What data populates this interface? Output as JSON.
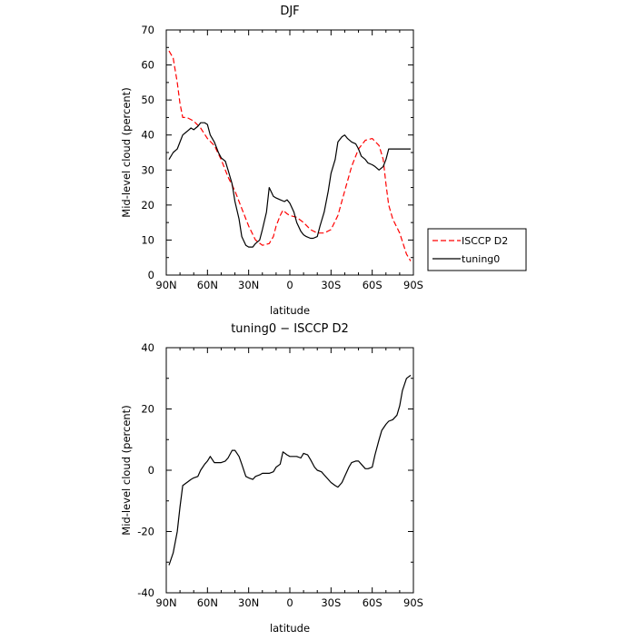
{
  "chart_data": [
    {
      "type": "line",
      "title": "DJF",
      "xlabel": "latitude",
      "ylabel": "Mid-level cloud (percent)",
      "xticks": [
        "90N",
        "60N",
        "30N",
        "0",
        "30S",
        "60S",
        "90S"
      ],
      "xtick_values": [
        90,
        60,
        30,
        0,
        -30,
        -60,
        -90
      ],
      "xlim": [
        90,
        -90
      ],
      "ylim": [
        0,
        70
      ],
      "yticks": [
        0,
        10,
        20,
        30,
        40,
        50,
        60,
        70
      ],
      "grid": false,
      "legend_position": "right",
      "series": [
        {
          "name": "ISCCP D2",
          "color": "#ff0000",
          "style": "dashed",
          "x": [
            88,
            85,
            82,
            80,
            78,
            75,
            70,
            65,
            60,
            55,
            50,
            45,
            40,
            35,
            30,
            25,
            20,
            15,
            12,
            10,
            7,
            5,
            2,
            0,
            -5,
            -10,
            -15,
            -20,
            -25,
            -30,
            -35,
            -40,
            -45,
            -50,
            -55,
            -60,
            -65,
            -68,
            -70,
            -72,
            -75,
            -80,
            -85,
            -88
          ],
          "y": [
            64,
            62,
            55,
            49,
            45,
            45,
            44,
            42,
            39,
            37,
            33,
            28,
            24,
            19,
            14,
            10,
            8.5,
            9,
            11,
            14,
            17,
            18.5,
            17.5,
            17,
            16.5,
            15,
            13,
            12,
            12,
            13,
            17,
            24,
            31,
            36,
            38.5,
            39,
            37,
            33,
            26,
            20,
            16,
            12,
            6,
            4
          ]
        },
        {
          "name": "tuning0",
          "color": "#000000",
          "style": "solid",
          "x": [
            88,
            85,
            82,
            80,
            78,
            75,
            72,
            70,
            67,
            65,
            62,
            60,
            58,
            55,
            52,
            50,
            47,
            45,
            42,
            40,
            37,
            35,
            32,
            30,
            27,
            25,
            22,
            20,
            17,
            15,
            12,
            10,
            7,
            4,
            2,
            0,
            -3,
            -5,
            -8,
            -10,
            -12,
            -15,
            -17,
            -20,
            -22,
            -25,
            -28,
            -30,
            -33,
            -35,
            -38,
            -40,
            -42,
            -45,
            -48,
            -50,
            -52,
            -55,
            -57,
            -60,
            -62,
            -65,
            -68,
            -70,
            -72,
            -75,
            -78,
            -80,
            -82,
            -85,
            -88
          ],
          "y": [
            33,
            35,
            36,
            38,
            40,
            41,
            42,
            41.5,
            42.5,
            43.5,
            43.5,
            43,
            40,
            38,
            35,
            33.5,
            32.5,
            30,
            26,
            21,
            16,
            11,
            8.5,
            8,
            8,
            9,
            10,
            13,
            18,
            25,
            22.5,
            22,
            21.5,
            21,
            21.5,
            20.5,
            18,
            15,
            12.5,
            11.5,
            11,
            10.5,
            10.5,
            11,
            14,
            18,
            24,
            29,
            33,
            38,
            39.5,
            40,
            39,
            38,
            37.5,
            36,
            34,
            33,
            32,
            31.5,
            31,
            30,
            31,
            33,
            36,
            36,
            36,
            36,
            36,
            36,
            36
          ]
        }
      ]
    },
    {
      "type": "line",
      "title": "tuning0 − ISCCP D2",
      "xlabel": "latitude",
      "ylabel": "Mid-level cloud (percent)",
      "xticks": [
        "90N",
        "60N",
        "30N",
        "0",
        "30S",
        "60S",
        "90S"
      ],
      "xtick_values": [
        90,
        60,
        30,
        0,
        -30,
        -60,
        -90
      ],
      "xlim": [
        90,
        -90
      ],
      "ylim": [
        -40,
        40
      ],
      "yticks": [
        -40,
        -20,
        0,
        20,
        40
      ],
      "grid": false,
      "series": [
        {
          "color": "#000000",
          "style": "solid",
          "x": [
            88,
            85,
            82,
            80,
            78,
            75,
            72,
            70,
            67,
            65,
            62,
            60,
            58,
            55,
            52,
            50,
            47,
            45,
            42,
            40,
            37,
            35,
            32,
            30,
            27,
            25,
            22,
            20,
            17,
            15,
            12,
            10,
            7,
            5,
            2,
            0,
            -2,
            -5,
            -8,
            -10,
            -13,
            -15,
            -18,
            -20,
            -23,
            -25,
            -28,
            -30,
            -33,
            -35,
            -38,
            -40,
            -43,
            -45,
            -48,
            -50,
            -52,
            -55,
            -57,
            -60,
            -62,
            -65,
            -67,
            -70,
            -72,
            -75,
            -78,
            -80,
            -82,
            -85,
            -88
          ],
          "y": [
            -31,
            -27,
            -20,
            -12,
            -5,
            -4,
            -3,
            -2.5,
            -2,
            0,
            2,
            3,
            4.5,
            2.5,
            2.5,
            2.5,
            3,
            4,
            6.5,
            6.5,
            4.5,
            2,
            -2,
            -2.5,
            -3,
            -2,
            -1.5,
            -1,
            -1,
            -1,
            -0.5,
            1,
            2,
            6,
            5,
            4.5,
            4.5,
            4.5,
            4,
            5.5,
            5,
            3.5,
            1,
            0,
            -0.5,
            -1.5,
            -3,
            -4,
            -5,
            -5.5,
            -4,
            -2,
            1,
            2.5,
            3,
            3,
            2,
            0.5,
            0.5,
            1,
            5,
            10,
            13,
            15,
            16,
            16.5,
            18,
            21,
            26,
            30,
            31
          ]
        }
      ]
    }
  ]
}
